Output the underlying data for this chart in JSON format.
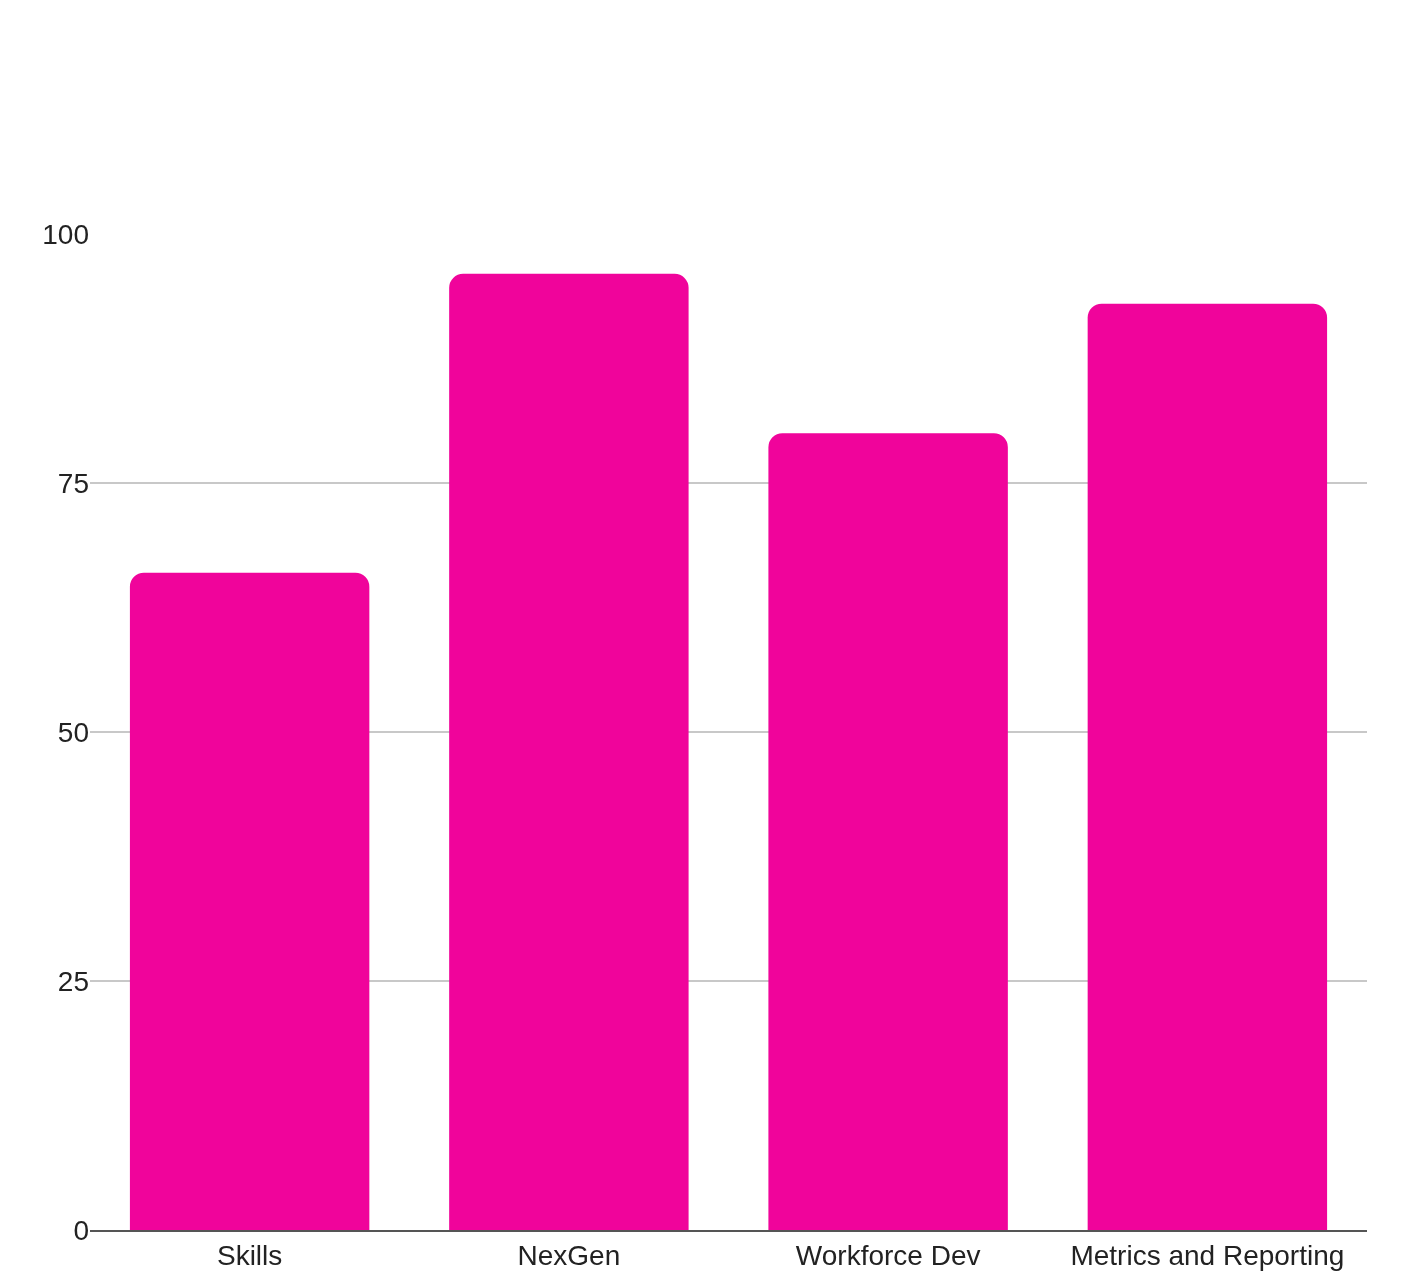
{
  "chart_data": {
    "type": "bar",
    "categories": [
      "Skills",
      "NexGen",
      "Workforce Dev",
      "Metrics and Reporting"
    ],
    "values": [
      66,
      96,
      80,
      93
    ],
    "color": "#f0049b",
    "ylim": [
      0,
      100
    ],
    "yticks": [
      0,
      25,
      50,
      75,
      100
    ],
    "grid": "y"
  }
}
